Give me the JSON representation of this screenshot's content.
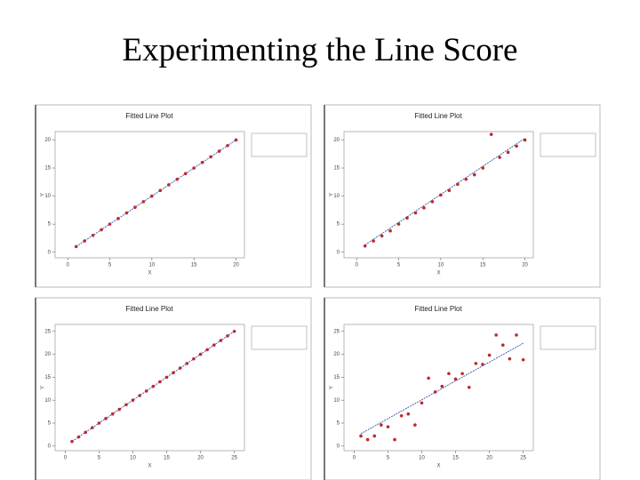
{
  "title": "Experimenting the Line Score",
  "chart_data": [
    {
      "type": "scatter",
      "title": "Fitted Line Plot",
      "x_label": "X",
      "y_label": "Y",
      "color": "#c0282d",
      "x": [
        1,
        2,
        3,
        4,
        5,
        6,
        7,
        8,
        9,
        10,
        11,
        12,
        13,
        14,
        15,
        16,
        17,
        18,
        19,
        20
      ],
      "values": [
        1,
        2,
        3,
        4,
        5,
        6,
        7,
        8,
        9,
        10,
        11,
        12,
        13,
        14,
        15,
        16,
        17,
        18,
        19,
        20
      ],
      "fit": {
        "x": [
          1,
          20
        ],
        "values": [
          1,
          20
        ],
        "color": "#3355aa"
      },
      "xlim": [
        -1.5,
        21
      ],
      "ylim": [
        -1,
        21.5
      ],
      "xticks": [
        0,
        5,
        10,
        15,
        20
      ],
      "yticks": [
        0,
        5,
        10,
        15,
        20
      ]
    },
    {
      "type": "scatter",
      "title": "Fitted Line Plot",
      "x_label": "X",
      "y_label": "Y",
      "color": "#c0282d",
      "x": [
        1,
        2,
        3,
        4,
        5,
        6,
        7,
        8,
        9,
        10,
        11,
        12,
        13,
        14,
        15,
        16,
        17,
        18,
        19,
        20
      ],
      "values": [
        1.1,
        2,
        2.9,
        3.8,
        5,
        6.1,
        7,
        7.9,
        9,
        10.2,
        11,
        12.1,
        13,
        13.8,
        15,
        21,
        16.9,
        17.8,
        18.9,
        20
      ],
      "fit": {
        "x": [
          1,
          20
        ],
        "values": [
          1.3,
          20.3
        ],
        "color": "#3355aa"
      },
      "xlim": [
        -1.5,
        21
      ],
      "ylim": [
        -1,
        21.5
      ],
      "xticks": [
        0,
        5,
        10,
        15,
        20
      ],
      "yticks": [
        0,
        5,
        10,
        15,
        20
      ]
    },
    {
      "type": "scatter",
      "title": "Fitted Line Plot",
      "x_label": "X",
      "y_label": "Y",
      "color": "#c0282d",
      "x": [
        1,
        2,
        3,
        4,
        5,
        6,
        7,
        8,
        9,
        10,
        11,
        12,
        13,
        14,
        15,
        16,
        17,
        18,
        19,
        20,
        21,
        22,
        23,
        24,
        25
      ],
      "values": [
        1,
        2,
        3,
        4,
        5,
        6,
        7,
        8,
        9,
        10,
        11,
        12,
        13,
        14,
        15,
        16,
        17,
        18,
        19,
        20,
        21,
        22,
        23,
        24,
        25
      ],
      "fit": {
        "x": [
          1,
          25
        ],
        "values": [
          1,
          25
        ],
        "color": "#3355aa"
      },
      "xlim": [
        -1.5,
        26.5
      ],
      "ylim": [
        -1,
        26.5
      ],
      "xticks": [
        0,
        5,
        10,
        15,
        20,
        25
      ],
      "yticks": [
        0,
        5,
        10,
        15,
        20,
        25
      ]
    },
    {
      "type": "scatter",
      "title": "Fitted Line Plot",
      "x_label": "X",
      "y_label": "Y",
      "color": "#c0282d",
      "x": [
        1,
        2,
        3,
        4,
        5,
        6,
        7,
        8,
        9,
        10,
        11,
        12,
        13,
        14,
        15,
        16,
        17,
        18,
        19,
        20,
        21,
        22,
        23,
        24,
        25
      ],
      "values": [
        2.2,
        1.4,
        2.2,
        4.6,
        4.2,
        1.4,
        6.6,
        7,
        4.6,
        9.4,
        14.8,
        11.8,
        13,
        15.8,
        14.6,
        15.8,
        12.8,
        18,
        17.8,
        19.8,
        24.2,
        22,
        19,
        24.2,
        18.8
      ],
      "fit": {
        "x": [
          1,
          25
        ],
        "values": [
          2.7,
          22.4
        ],
        "color": "#3355aa"
      },
      "xlim": [
        -1.5,
        26.5
      ],
      "ylim": [
        -1,
        26.5
      ],
      "xticks": [
        0,
        5,
        10,
        15,
        20,
        25
      ],
      "yticks": [
        0,
        5,
        10,
        15,
        20,
        25
      ]
    }
  ]
}
